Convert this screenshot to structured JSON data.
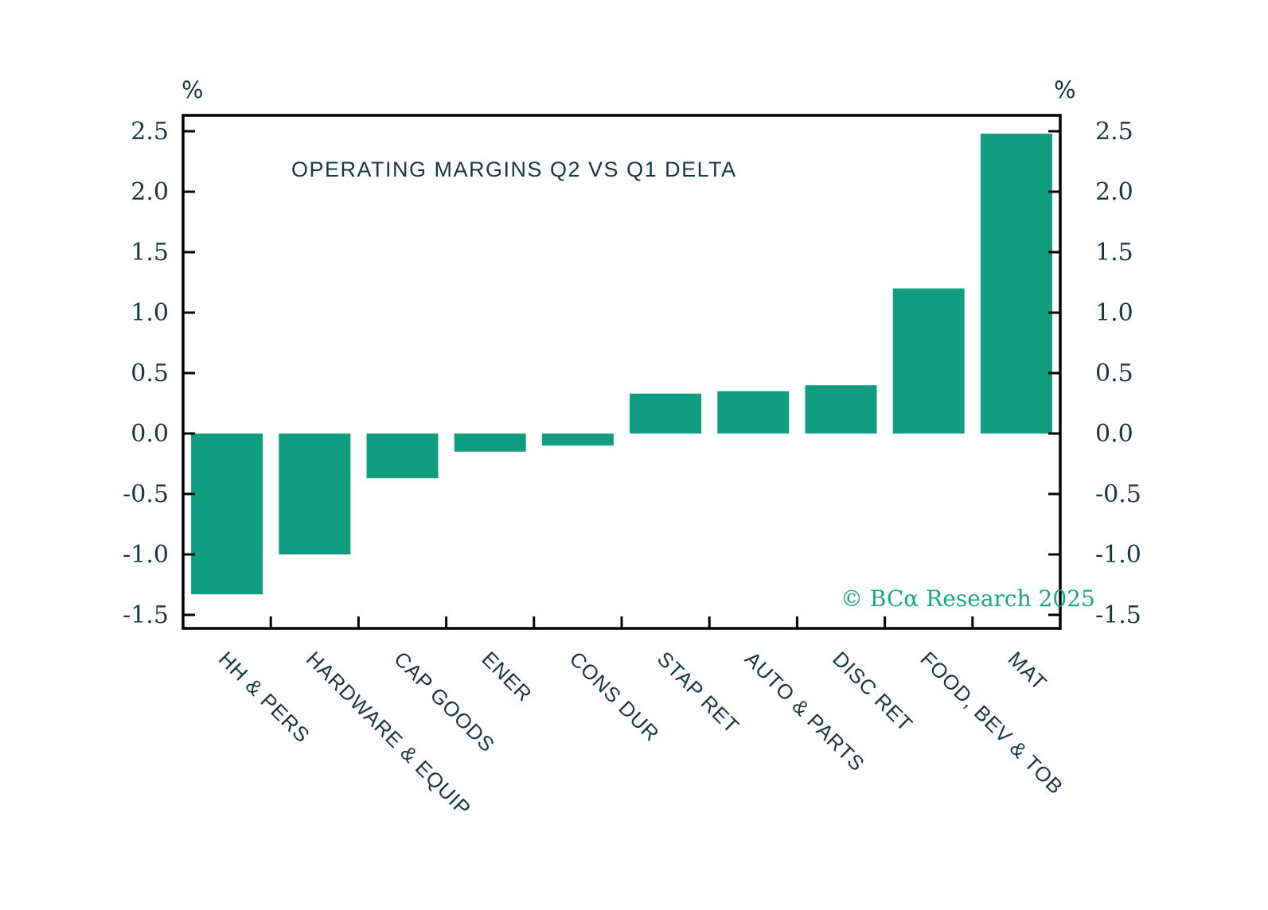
{
  "page": {
    "background": "#ffffff"
  },
  "chart": {
    "title": "OPERATING MARGINS Q2 VS Q1 DELTA",
    "left_axis_unit": "%",
    "right_axis_unit": "%",
    "watermark": "© BCα Research 2025"
  },
  "chart_data": {
    "type": "bar",
    "title": "OPERATING MARGINS Q2 VS Q1 DELTA",
    "categories": [
      "HH & PERS",
      "HARDWARE & EQUIP",
      "CAP GOODS",
      "ENER",
      "CONS DUR",
      "STAP RET",
      "AUTO & PARTS",
      "DISC RET",
      "FOOD, BEV & TOB",
      "MAT"
    ],
    "values": [
      -1.33,
      -1.0,
      -0.37,
      -0.15,
      -0.1,
      0.33,
      0.35,
      0.4,
      1.2,
      2.48
    ],
    "xlabel": "",
    "ylabel": "%",
    "ylim": [
      -1.5,
      2.5
    ],
    "yticks": [
      2.5,
      2.0,
      1.5,
      1.0,
      0.5,
      0.0,
      -0.5,
      -1.0,
      -1.5
    ],
    "grid": false,
    "legend_position": "none",
    "bar_color": "#119e80",
    "axis_color": "#000000",
    "text_color": "#16383c",
    "watermark": "© BCα Research 2025",
    "watermark_color": "#15aa7d"
  }
}
